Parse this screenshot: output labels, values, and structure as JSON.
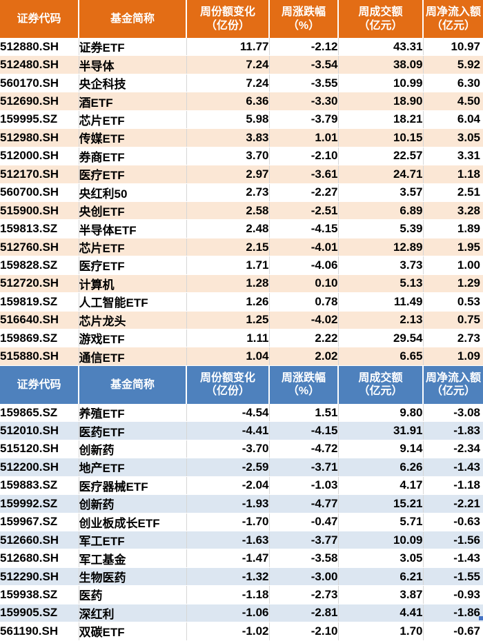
{
  "theme": {
    "inflow_header_bg": "#E36D15",
    "inflow_alt_row_bg": "#FBE7D5",
    "outflow_header_bg": "#4E81BD",
    "outflow_alt_row_bg": "#DCE6F1",
    "header_text_color": "#FFFFFF",
    "body_text_color": "#000000",
    "grid_line_color": "#D6D6D6",
    "selection_handle_color": "#4472C4"
  },
  "chart_data": [
    {
      "type": "table",
      "name": "weekly-share-inflow-table",
      "header_bg": "#E36D15",
      "alt_row_bg": "#FBE7D5",
      "columns": [
        "证券代码",
        "基金简称",
        "周份额变化（亿份）",
        "周涨跌幅（%）",
        "周成交额（亿元）",
        "周净流入额（亿元）"
      ],
      "header_lines": [
        [
          "证券代码",
          ""
        ],
        [
          "基金简称",
          ""
        ],
        [
          "周份额变化",
          "（亿份）"
        ],
        [
          "周涨跌幅",
          "（%）"
        ],
        [
          "周成交额",
          "（亿元）"
        ],
        [
          "周净流入额",
          "（亿元）"
        ]
      ],
      "rows": [
        [
          "512880.SH",
          "证券ETF",
          "11.77",
          "-2.12",
          "43.31",
          "10.97"
        ],
        [
          "512480.SH",
          "半导体",
          "7.24",
          "-3.54",
          "38.09",
          "5.92"
        ],
        [
          "560170.SH",
          "央企科技",
          "7.24",
          "-3.55",
          "10.99",
          "6.30"
        ],
        [
          "512690.SH",
          "酒ETF",
          "6.36",
          "-3.30",
          "18.90",
          "4.50"
        ],
        [
          "159995.SZ",
          "芯片ETF",
          "5.98",
          "-3.79",
          "18.21",
          "6.04"
        ],
        [
          "512980.SH",
          "传媒ETF",
          "3.83",
          "1.01",
          "10.15",
          "3.05"
        ],
        [
          "512000.SH",
          "券商ETF",
          "3.70",
          "-2.10",
          "22.57",
          "3.31"
        ],
        [
          "512170.SH",
          "医疗ETF",
          "2.97",
          "-3.61",
          "24.71",
          "1.18"
        ],
        [
          "560700.SH",
          "央红利50",
          "2.73",
          "-2.27",
          "3.57",
          "2.51"
        ],
        [
          "515900.SH",
          "央创ETF",
          "2.58",
          "-2.51",
          "6.89",
          "3.28"
        ],
        [
          "159813.SZ",
          "半导体ETF",
          "2.48",
          "-4.15",
          "5.39",
          "1.89"
        ],
        [
          "512760.SH",
          "芯片ETF",
          "2.15",
          "-4.01",
          "12.89",
          "1.95"
        ],
        [
          "159828.SZ",
          "医疗ETF",
          "1.71",
          "-4.06",
          "3.73",
          "1.00"
        ],
        [
          "512720.SH",
          "计算机",
          "1.28",
          "0.10",
          "5.13",
          "1.29"
        ],
        [
          "159819.SZ",
          "人工智能ETF",
          "1.26",
          "0.78",
          "11.49",
          "0.53"
        ],
        [
          "516640.SH",
          "芯片龙头",
          "1.25",
          "-4.02",
          "2.13",
          "0.75"
        ],
        [
          "159869.SZ",
          "游戏ETF",
          "1.11",
          "2.22",
          "29.54",
          "2.73"
        ],
        [
          "515880.SH",
          "通信ETF",
          "1.04",
          "2.02",
          "6.65",
          "1.09"
        ]
      ]
    },
    {
      "type": "table",
      "name": "weekly-share-outflow-table",
      "header_bg": "#4E81BD",
      "alt_row_bg": "#DCE6F1",
      "columns": [
        "证券代码",
        "基金简称",
        "周份额变化（亿份）",
        "周涨跌幅（%）",
        "周成交额（亿元）",
        "周净流入额（亿元）"
      ],
      "header_lines": [
        [
          "证券代码",
          ""
        ],
        [
          "基金简称",
          ""
        ],
        [
          "周份额变化",
          "（亿份）"
        ],
        [
          "周涨跌幅",
          "（%）"
        ],
        [
          "周成交额",
          "（亿元）"
        ],
        [
          "周净流入额",
          "（亿元）"
        ]
      ],
      "rows": [
        [
          "159865.SZ",
          "养殖ETF",
          "-4.54",
          "1.51",
          "9.80",
          "-3.08"
        ],
        [
          "512010.SH",
          "医药ETF",
          "-4.41",
          "-4.15",
          "31.91",
          "-1.83"
        ],
        [
          "515120.SH",
          "创新药",
          "-3.70",
          "-4.72",
          "9.14",
          "-2.34"
        ],
        [
          "512200.SH",
          "地产ETF",
          "-2.59",
          "-3.71",
          "6.26",
          "-1.43"
        ],
        [
          "159883.SZ",
          "医疗器械ETF",
          "-2.04",
          "-1.03",
          "4.17",
          "-1.18"
        ],
        [
          "159992.SZ",
          "创新药",
          "-1.93",
          "-4.77",
          "15.21",
          "-2.21"
        ],
        [
          "159967.SZ",
          "创业板成长ETF",
          "-1.70",
          "-0.47",
          "5.71",
          "-0.63"
        ],
        [
          "512660.SH",
          "军工ETF",
          "-1.63",
          "-3.77",
          "10.09",
          "-1.56"
        ],
        [
          "512680.SH",
          "军工基金",
          "-1.47",
          "-3.58",
          "3.05",
          "-1.43"
        ],
        [
          "512290.SH",
          "生物医药",
          "-1.32",
          "-3.00",
          "6.21",
          "-1.55"
        ],
        [
          "159938.SZ",
          "医药",
          "-1.18",
          "-2.73",
          "3.87",
          "-0.93"
        ],
        [
          "159905.SZ",
          "深红利",
          "-1.06",
          "-2.81",
          "4.41",
          "-1.86"
        ],
        [
          "561190.SH",
          "双碳ETF",
          "-1.02",
          "-2.10",
          "1.70",
          "-0.67"
        ]
      ]
    }
  ]
}
